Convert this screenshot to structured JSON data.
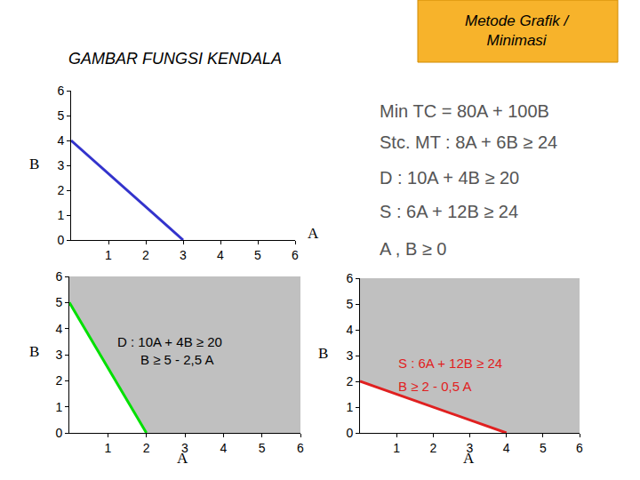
{
  "title": "GAMBAR FUNGSI KENDALA",
  "badge": [
    "Metode Grafik /",
    "Minimasi"
  ],
  "model": [
    "Min TC = 80A + 100B",
    "Stc. MT : 8A + 6B ≥ 24",
    "D : 10A + 4B ≥ 20",
    "S : 6A + 12B ≥ 24",
    "A , B ≥ 0"
  ],
  "chart_data": [
    {
      "type": "line",
      "x_label": "A",
      "y_label": "B",
      "xlim": [
        0,
        6
      ],
      "ylim": [
        0,
        6
      ],
      "xticks": [
        1,
        2,
        3,
        4,
        5,
        6
      ],
      "yticks": [
        0,
        1,
        2,
        3,
        4,
        5,
        6
      ],
      "grid": false,
      "series": [
        {
          "color": "#3333cc",
          "x": [
            0,
            3
          ],
          "values": [
            4,
            0
          ]
        }
      ]
    },
    {
      "type": "line",
      "x_label": "A",
      "y_label": "B",
      "xlim": [
        0,
        6
      ],
      "ylim": [
        0,
        6
      ],
      "xticks": [
        1,
        2,
        3,
        4,
        5,
        6
      ],
      "yticks": [
        0,
        1,
        2,
        3,
        4,
        5,
        6
      ],
      "grid": false,
      "series": [
        {
          "type": "area",
          "color": "#c0c0c0",
          "x": [
            0,
            0,
            2,
            6,
            6
          ],
          "values": [
            6,
            5,
            0,
            0,
            6
          ]
        },
        {
          "color": "#00e000",
          "x": [
            0,
            2
          ],
          "values": [
            5,
            0
          ]
        }
      ],
      "annotations": [
        {
          "text": "D : 10A + 4B ≥ 20",
          "x": 1.2,
          "y": 3.5,
          "color": "#000000"
        },
        {
          "text": "B ≥ 5 - 2,5 A",
          "x": 1.8,
          "y": 2.8,
          "color": "#000000"
        }
      ]
    },
    {
      "type": "line",
      "x_label": "A",
      "y_label": "B",
      "xlim": [
        0,
        6
      ],
      "ylim": [
        0,
        6
      ],
      "xticks": [
        1,
        2,
        3,
        4,
        5,
        6
      ],
      "yticks": [
        0,
        1,
        2,
        3,
        4,
        5,
        6
      ],
      "grid": false,
      "series": [
        {
          "type": "area",
          "color": "#c0c0c0",
          "x": [
            0,
            0,
            4,
            6,
            6
          ],
          "values": [
            6,
            2,
            0,
            0,
            6
          ]
        },
        {
          "color": "#e02020",
          "x": [
            0,
            4
          ],
          "values": [
            2,
            0
          ]
        }
      ],
      "annotations": [
        {
          "text": "S : 6A + 12B ≥ 24",
          "x": 1.0,
          "y": 2.7,
          "color": "#e02020"
        },
        {
          "text": "B ≥ 2 - 0,5 A",
          "x": 1.0,
          "y": 1.8,
          "color": "#e02020"
        }
      ]
    }
  ]
}
